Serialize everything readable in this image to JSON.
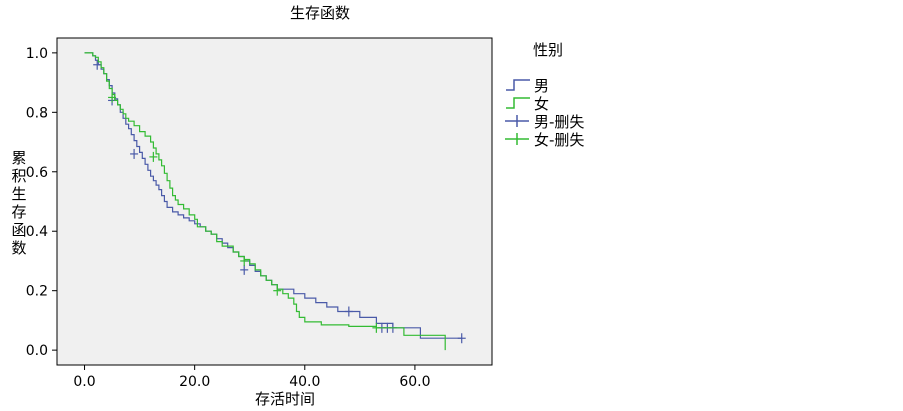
{
  "chart_data": {
    "type": "line",
    "title": "生存函数",
    "xlabel": "存活时间",
    "ylabel": "累积生存函数",
    "xlim": [
      -5,
      74
    ],
    "ylim": [
      -0.05,
      1.05
    ],
    "xticks": [
      0,
      20,
      40,
      60
    ],
    "xtick_labels": [
      "0.0",
      "20.0",
      "40.0",
      "60.0"
    ],
    "yticks": [
      0,
      0.2,
      0.4,
      0.6,
      0.8,
      1.0
    ],
    "ytick_labels": [
      "0.0",
      "0.2",
      "0.4",
      "0.6",
      "0.8",
      "1.0"
    ],
    "grid": false,
    "legend": {
      "title": "性别",
      "position": "right",
      "entries": [
        {
          "label": "男",
          "series": "male",
          "kind": "line"
        },
        {
          "label": "女",
          "series": "female",
          "kind": "line"
        },
        {
          "label": "男-删失",
          "series": "male",
          "kind": "censor"
        },
        {
          "label": "女-删失",
          "series": "female",
          "kind": "censor"
        }
      ]
    },
    "series": [
      {
        "name": "男",
        "color": "#4a5aa8",
        "steps": [
          [
            0,
            1.0
          ],
          [
            1.5,
            0.99
          ],
          [
            2,
            0.975
          ],
          [
            2.5,
            0.96
          ],
          [
            3,
            0.945
          ],
          [
            3.5,
            0.93
          ],
          [
            4,
            0.91
          ],
          [
            4.5,
            0.89
          ],
          [
            5,
            0.865
          ],
          [
            5.5,
            0.845
          ],
          [
            6,
            0.825
          ],
          [
            6.5,
            0.8
          ],
          [
            7,
            0.78
          ],
          [
            7.5,
            0.76
          ],
          [
            8,
            0.745
          ],
          [
            8.5,
            0.725
          ],
          [
            9,
            0.705
          ],
          [
            9.5,
            0.685
          ],
          [
            10,
            0.665
          ],
          [
            10.5,
            0.645
          ],
          [
            11,
            0.625
          ],
          [
            11.5,
            0.605
          ],
          [
            12,
            0.585
          ],
          [
            12.5,
            0.57
          ],
          [
            13,
            0.555
          ],
          [
            13.5,
            0.54
          ],
          [
            14,
            0.52
          ],
          [
            14.5,
            0.5
          ],
          [
            15,
            0.48
          ],
          [
            16,
            0.465
          ],
          [
            17,
            0.455
          ],
          [
            18,
            0.445
          ],
          [
            19,
            0.435
          ],
          [
            20,
            0.425
          ],
          [
            21,
            0.415
          ],
          [
            22,
            0.4
          ],
          [
            23,
            0.39
          ],
          [
            24,
            0.375
          ],
          [
            25,
            0.36
          ],
          [
            26,
            0.345
          ],
          [
            27,
            0.33
          ],
          [
            28,
            0.315
          ],
          [
            29,
            0.3
          ],
          [
            30,
            0.285
          ],
          [
            31,
            0.265
          ],
          [
            32,
            0.25
          ],
          [
            33,
            0.235
          ],
          [
            34,
            0.22
          ],
          [
            35,
            0.205
          ],
          [
            38,
            0.19
          ],
          [
            40,
            0.175
          ],
          [
            42,
            0.16
          ],
          [
            44,
            0.145
          ],
          [
            46,
            0.13
          ],
          [
            50,
            0.11
          ],
          [
            53,
            0.09
          ],
          [
            56,
            0.075
          ],
          [
            61,
            0.04
          ],
          [
            68.5,
            0.04
          ]
        ],
        "censored": [
          [
            2.3,
            0.96
          ],
          [
            5,
            0.84
          ],
          [
            9,
            0.66
          ],
          [
            29,
            0.27
          ],
          [
            48,
            0.13
          ],
          [
            54,
            0.075
          ],
          [
            55,
            0.075
          ],
          [
            56,
            0.075
          ],
          [
            68.5,
            0.04
          ]
        ]
      },
      {
        "name": "女",
        "color": "#33bb33",
        "steps": [
          [
            0,
            1.0
          ],
          [
            1.5,
            0.99
          ],
          [
            2,
            0.985
          ],
          [
            2.5,
            0.97
          ],
          [
            3,
            0.95
          ],
          [
            3.5,
            0.93
          ],
          [
            4,
            0.905
          ],
          [
            4.5,
            0.88
          ],
          [
            5,
            0.86
          ],
          [
            5.5,
            0.84
          ],
          [
            6,
            0.825
          ],
          [
            6.5,
            0.81
          ],
          [
            7,
            0.795
          ],
          [
            7.5,
            0.78
          ],
          [
            8,
            0.77
          ],
          [
            9,
            0.755
          ],
          [
            10,
            0.735
          ],
          [
            11,
            0.72
          ],
          [
            12,
            0.7
          ],
          [
            12.5,
            0.68
          ],
          [
            13,
            0.66
          ],
          [
            13.5,
            0.64
          ],
          [
            14,
            0.62
          ],
          [
            14.5,
            0.595
          ],
          [
            15,
            0.57
          ],
          [
            15.5,
            0.545
          ],
          [
            16,
            0.52
          ],
          [
            16.5,
            0.505
          ],
          [
            17,
            0.49
          ],
          [
            18,
            0.475
          ],
          [
            19,
            0.455
          ],
          [
            20,
            0.44
          ],
          [
            20.5,
            0.415
          ],
          [
            22,
            0.4
          ],
          [
            23,
            0.39
          ],
          [
            24,
            0.365
          ],
          [
            25,
            0.35
          ],
          [
            27,
            0.33
          ],
          [
            28,
            0.315
          ],
          [
            29,
            0.305
          ],
          [
            30,
            0.29
          ],
          [
            31,
            0.27
          ],
          [
            32,
            0.25
          ],
          [
            33,
            0.235
          ],
          [
            34,
            0.22
          ],
          [
            35,
            0.205
          ],
          [
            36,
            0.19
          ],
          [
            37,
            0.175
          ],
          [
            38,
            0.155
          ],
          [
            38.5,
            0.13
          ],
          [
            39,
            0.11
          ],
          [
            40,
            0.095
          ],
          [
            43,
            0.085
          ],
          [
            48,
            0.08
          ],
          [
            53,
            0.075
          ],
          [
            58,
            0.05
          ],
          [
            65.5,
            0.05
          ],
          [
            65.5,
            0.0
          ]
        ],
        "censored": [
          [
            5,
            0.85
          ],
          [
            12.5,
            0.65
          ],
          [
            29,
            0.3
          ],
          [
            35,
            0.2
          ],
          [
            53,
            0.075
          ]
        ]
      }
    ]
  }
}
